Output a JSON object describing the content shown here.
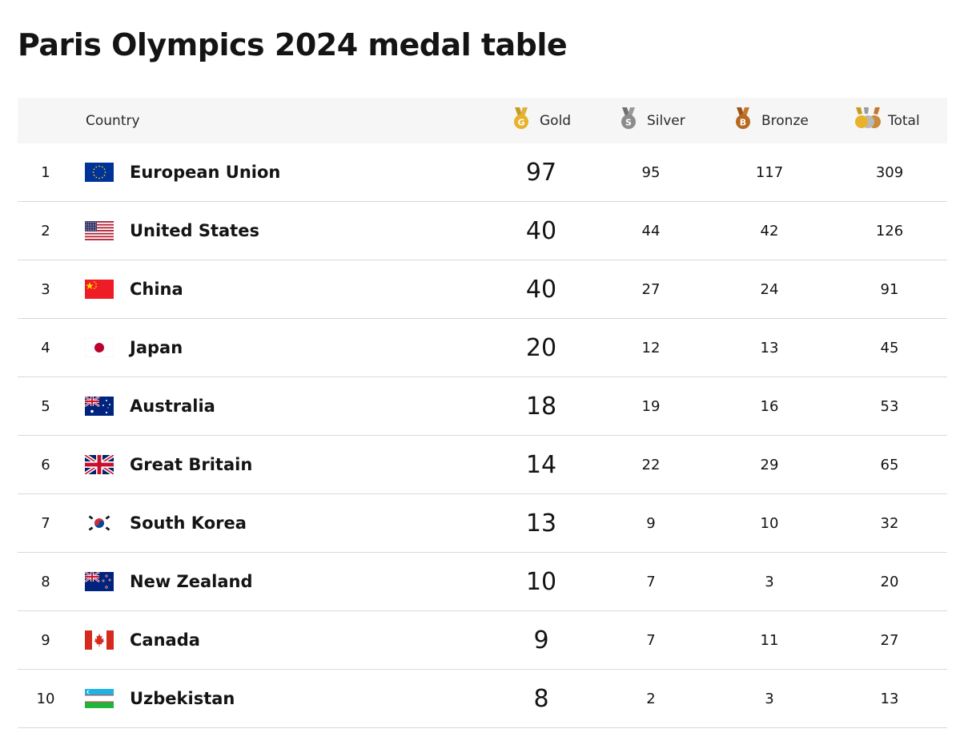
{
  "page": {
    "title": "Paris Olympics 2024 medal table"
  },
  "header": {
    "country": "Country",
    "gold": "Gold",
    "silver": "Silver",
    "bronze": "Bronze",
    "total": "Total"
  },
  "medal_icons": {
    "gold": "gold-medal-icon",
    "silver": "silver-medal-icon",
    "bronze": "bronze-medal-icon",
    "total": "medals-stack-icon"
  },
  "colors": {
    "header_bg": "#f6f6f6",
    "divider": "#d9d9d9",
    "gold": "#e8b22a",
    "silver": "#8c8c8c",
    "bronze": "#b8691f"
  },
  "rows": [
    {
      "rank": "1",
      "country": "European Union",
      "flag": "eu-flag-icon",
      "gold": "97",
      "silver": "95",
      "bronze": "117",
      "total": "309"
    },
    {
      "rank": "2",
      "country": "United States",
      "flag": "us-flag-icon",
      "gold": "40",
      "silver": "44",
      "bronze": "42",
      "total": "126"
    },
    {
      "rank": "3",
      "country": "China",
      "flag": "china-flag-icon",
      "gold": "40",
      "silver": "27",
      "bronze": "24",
      "total": "91"
    },
    {
      "rank": "4",
      "country": "Japan",
      "flag": "japan-flag-icon",
      "gold": "20",
      "silver": "12",
      "bronze": "13",
      "total": "45"
    },
    {
      "rank": "5",
      "country": "Australia",
      "flag": "australia-flag-icon",
      "gold": "18",
      "silver": "19",
      "bronze": "16",
      "total": "53"
    },
    {
      "rank": "6",
      "country": "Great Britain",
      "flag": "great-britain-flag-icon",
      "gold": "14",
      "silver": "22",
      "bronze": "29",
      "total": "65"
    },
    {
      "rank": "7",
      "country": "South Korea",
      "flag": "south-korea-flag-icon",
      "gold": "13",
      "silver": "9",
      "bronze": "10",
      "total": "32"
    },
    {
      "rank": "8",
      "country": "New Zealand",
      "flag": "new-zealand-flag-icon",
      "gold": "10",
      "silver": "7",
      "bronze": "3",
      "total": "20"
    },
    {
      "rank": "9",
      "country": "Canada",
      "flag": "canada-flag-icon",
      "gold": "9",
      "silver": "7",
      "bronze": "11",
      "total": "27"
    },
    {
      "rank": "10",
      "country": "Uzbekistan",
      "flag": "uzbekistan-flag-icon",
      "gold": "8",
      "silver": "2",
      "bronze": "3",
      "total": "13"
    }
  ]
}
